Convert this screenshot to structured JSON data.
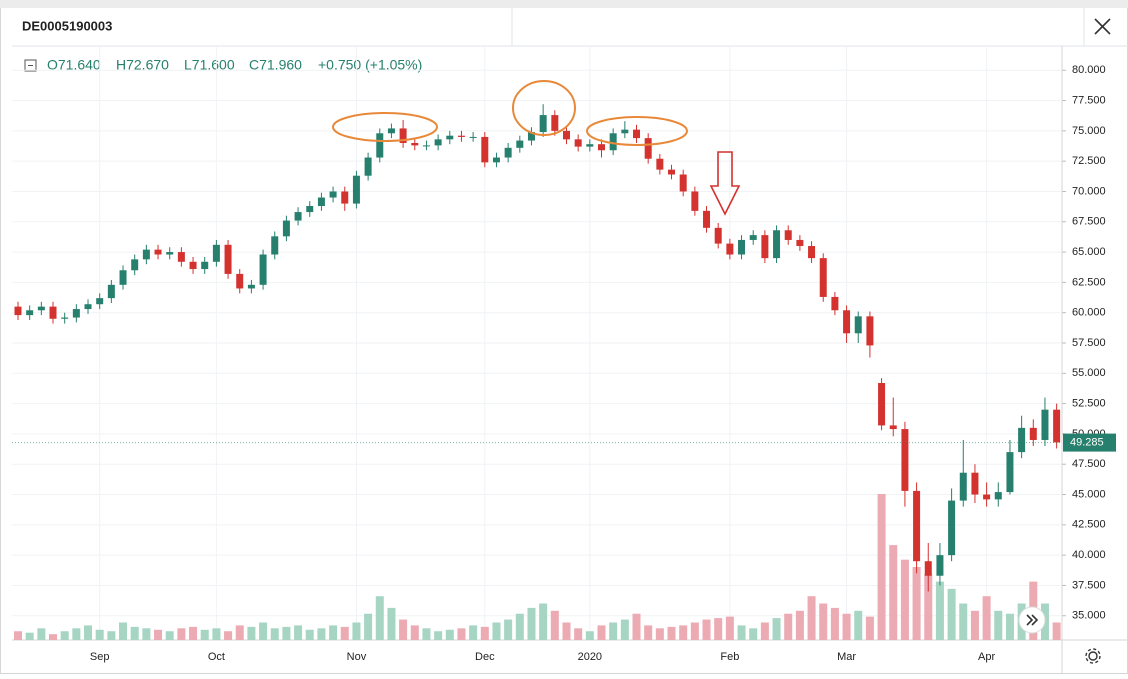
{
  "header": {
    "symbol": "DE0005190003"
  },
  "legend": {
    "open": "O71.640",
    "high": "H72.670",
    "low": "L71.600",
    "close": "C71.960",
    "change": "+0.750 (+1.05%)"
  },
  "chart_data": {
    "type": "candlestick",
    "up_color": "#26806d",
    "down_color": "#d3322f",
    "volume_up_color": "#a6d5c4",
    "volume_down_color": "#ecaab2",
    "categories": [
      null,
      null,
      null,
      null,
      null,
      null,
      null,
      "Sep",
      null,
      null,
      null,
      null,
      null,
      null,
      null,
      null,
      null,
      "Oct",
      null,
      null,
      null,
      null,
      null,
      null,
      null,
      null,
      null,
      null,
      null,
      "Nov",
      null,
      null,
      null,
      null,
      null,
      null,
      null,
      null,
      null,
      null,
      "Dec",
      null,
      null,
      null,
      null,
      null,
      null,
      null,
      null,
      "2020",
      null,
      null,
      null,
      null,
      null,
      null,
      null,
      null,
      null,
      null,
      null,
      "Feb",
      null,
      null,
      null,
      null,
      null,
      null,
      null,
      null,
      null,
      "Mar",
      null,
      null,
      null,
      null,
      null,
      null,
      null,
      null,
      null,
      null,
      null,
      "Apr",
      null,
      null,
      null,
      null,
      null,
      null
    ],
    "open": [
      60.5,
      59.8,
      60.2,
      60.5,
      59.5,
      59.6,
      60.3,
      60.7,
      61.2,
      62.3,
      63.5,
      64.4,
      65.2,
      64.8,
      65.0,
      64.2,
      63.6,
      64.2,
      65.6,
      63.2,
      62.0,
      62.3,
      64.8,
      66.3,
      67.6,
      68.3,
      68.8,
      69.5,
      70.0,
      69.0,
      71.3,
      72.8,
      74.8,
      75.2,
      74.0,
      73.8,
      73.8,
      74.3,
      74.6,
      74.5,
      74.5,
      72.4,
      72.8,
      73.6,
      74.2,
      74.9,
      76.3,
      75.0,
      74.3,
      73.7,
      73.9,
      73.4,
      74.8,
      75.1,
      74.4,
      72.7,
      71.8,
      71.4,
      70.0,
      68.4,
      67.0,
      65.7,
      64.8,
      66.0,
      66.4,
      64.5,
      66.8,
      66.0,
      65.5,
      64.5,
      61.3,
      60.2,
      58.3,
      59.7,
      54.2,
      50.7,
      50.4,
      45.3,
      39.5,
      38.3,
      40.0,
      44.5,
      46.8,
      45.0,
      44.6,
      45.2,
      48.5,
      50.5,
      49.5,
      52.0
    ],
    "high": [
      60.9,
      60.6,
      60.9,
      60.9,
      60.0,
      60.7,
      61.1,
      61.6,
      62.7,
      63.9,
      64.8,
      65.6,
      65.6,
      65.4,
      65.4,
      64.6,
      64.6,
      66.0,
      66.0,
      63.6,
      62.7,
      65.2,
      66.7,
      68.0,
      68.7,
      69.2,
      69.9,
      70.4,
      70.4,
      71.7,
      73.2,
      75.2,
      75.6,
      75.9,
      74.4,
      74.2,
      74.7,
      75.0,
      75.0,
      74.9,
      74.9,
      73.2,
      74.0,
      74.6,
      75.3,
      77.2,
      76.7,
      75.4,
      74.7,
      74.3,
      74.3,
      75.2,
      75.8,
      75.5,
      74.8,
      73.1,
      72.2,
      71.8,
      70.4,
      68.8,
      67.4,
      66.1,
      66.4,
      66.8,
      66.8,
      67.2,
      67.2,
      66.4,
      65.9,
      64.9,
      61.7,
      60.6,
      60.1,
      60.1,
      54.6,
      53.0,
      51.0,
      46.0,
      41.0,
      41.0,
      45.5,
      49.5,
      47.5,
      46.0,
      46.0,
      49.5,
      51.5,
      51.2,
      53.0,
      52.5
    ],
    "low": [
      59.4,
      59.4,
      59.8,
      59.1,
      59.1,
      59.2,
      59.9,
      60.3,
      60.8,
      61.9,
      63.1,
      64.0,
      64.4,
      64.4,
      63.8,
      63.2,
      63.2,
      63.8,
      62.8,
      61.6,
      61.6,
      61.9,
      64.4,
      65.9,
      67.2,
      67.9,
      68.4,
      69.1,
      68.4,
      68.6,
      70.9,
      72.4,
      74.4,
      73.6,
      73.4,
      73.4,
      73.4,
      73.9,
      74.1,
      74.1,
      72.0,
      72.0,
      72.4,
      73.2,
      73.8,
      74.5,
      74.6,
      73.9,
      73.3,
      73.3,
      72.8,
      73.0,
      74.4,
      74.0,
      72.3,
      71.4,
      71.0,
      69.6,
      68.0,
      66.6,
      65.3,
      64.4,
      64.4,
      65.6,
      64.1,
      64.1,
      65.6,
      65.1,
      64.1,
      60.9,
      59.8,
      57.5,
      57.5,
      56.3,
      50.3,
      49.8,
      44.0,
      38.5,
      37.0,
      37.5,
      39.5,
      44.0,
      44.3,
      44.0,
      44.0,
      45.0,
      48.0,
      49.0,
      49.0,
      48.8
    ],
    "close": [
      59.8,
      60.2,
      60.5,
      59.5,
      59.6,
      60.3,
      60.7,
      61.2,
      62.3,
      63.5,
      64.4,
      65.2,
      64.8,
      65.0,
      64.2,
      63.6,
      64.2,
      65.6,
      63.2,
      62.0,
      62.3,
      64.8,
      66.3,
      67.6,
      68.3,
      68.8,
      69.5,
      70.0,
      69.0,
      71.3,
      72.8,
      74.8,
      75.2,
      74.0,
      73.8,
      73.8,
      74.3,
      74.6,
      74.5,
      74.5,
      72.4,
      72.8,
      73.6,
      74.2,
      74.9,
      76.3,
      75.0,
      74.3,
      73.7,
      73.9,
      73.4,
      74.8,
      75.1,
      74.4,
      72.7,
      71.8,
      71.4,
      70.0,
      68.4,
      67.0,
      65.7,
      64.8,
      66.0,
      66.4,
      64.5,
      66.8,
      66.0,
      65.5,
      64.5,
      61.3,
      60.2,
      58.3,
      59.7,
      57.3,
      50.7,
      50.4,
      45.3,
      39.5,
      38.3,
      40.0,
      44.5,
      46.8,
      45.0,
      44.6,
      45.2,
      48.5,
      50.5,
      49.5,
      52.0,
      49.3
    ],
    "volume": [
      6,
      5,
      8,
      4,
      6,
      8,
      10,
      7,
      6,
      12,
      9,
      8,
      7,
      6,
      8,
      9,
      7,
      8,
      6,
      10,
      9,
      12,
      8,
      9,
      10,
      7,
      8,
      10,
      9,
      12,
      18,
      30,
      22,
      14,
      10,
      8,
      6,
      7,
      8,
      10,
      9,
      12,
      14,
      18,
      22,
      25,
      20,
      12,
      8,
      6,
      10,
      12,
      14,
      18,
      10,
      8,
      9,
      10,
      12,
      14,
      15,
      16,
      10,
      8,
      12,
      15,
      18,
      20,
      30,
      25,
      22,
      18,
      20,
      16,
      100,
      65,
      55,
      50,
      45,
      40,
      35,
      25,
      20,
      30,
      20,
      18,
      25,
      40,
      25,
      12
    ],
    "ylim": [
      33,
      82
    ],
    "yticks": [
      {
        "value": 35,
        "label": "35.000"
      },
      {
        "value": 37.5,
        "label": "37.500"
      },
      {
        "value": 40,
        "label": "40.000"
      },
      {
        "value": 42.5,
        "label": "42.500"
      },
      {
        "value": 45,
        "label": "45.000"
      },
      {
        "value": 47.5,
        "label": "47.500"
      },
      {
        "value": 50,
        "label": "50.000"
      },
      {
        "value": 52.5,
        "label": "52.500"
      },
      {
        "value": 55,
        "label": "55.000"
      },
      {
        "value": 57.5,
        "label": "57.500"
      },
      {
        "value": 60,
        "label": "60.000"
      },
      {
        "value": 62.5,
        "label": "62.500"
      },
      {
        "value": 65,
        "label": "65.000"
      },
      {
        "value": 67.5,
        "label": "67.500"
      },
      {
        "value": 70,
        "label": "70.000"
      },
      {
        "value": 72.5,
        "label": "72.500"
      },
      {
        "value": 75,
        "label": "75.000"
      },
      {
        "value": 77.5,
        "label": "77.500"
      },
      {
        "value": 80,
        "label": "80.000"
      }
    ],
    "last_price": {
      "value": 49.285,
      "label": "49.285"
    },
    "grid": true
  }
}
